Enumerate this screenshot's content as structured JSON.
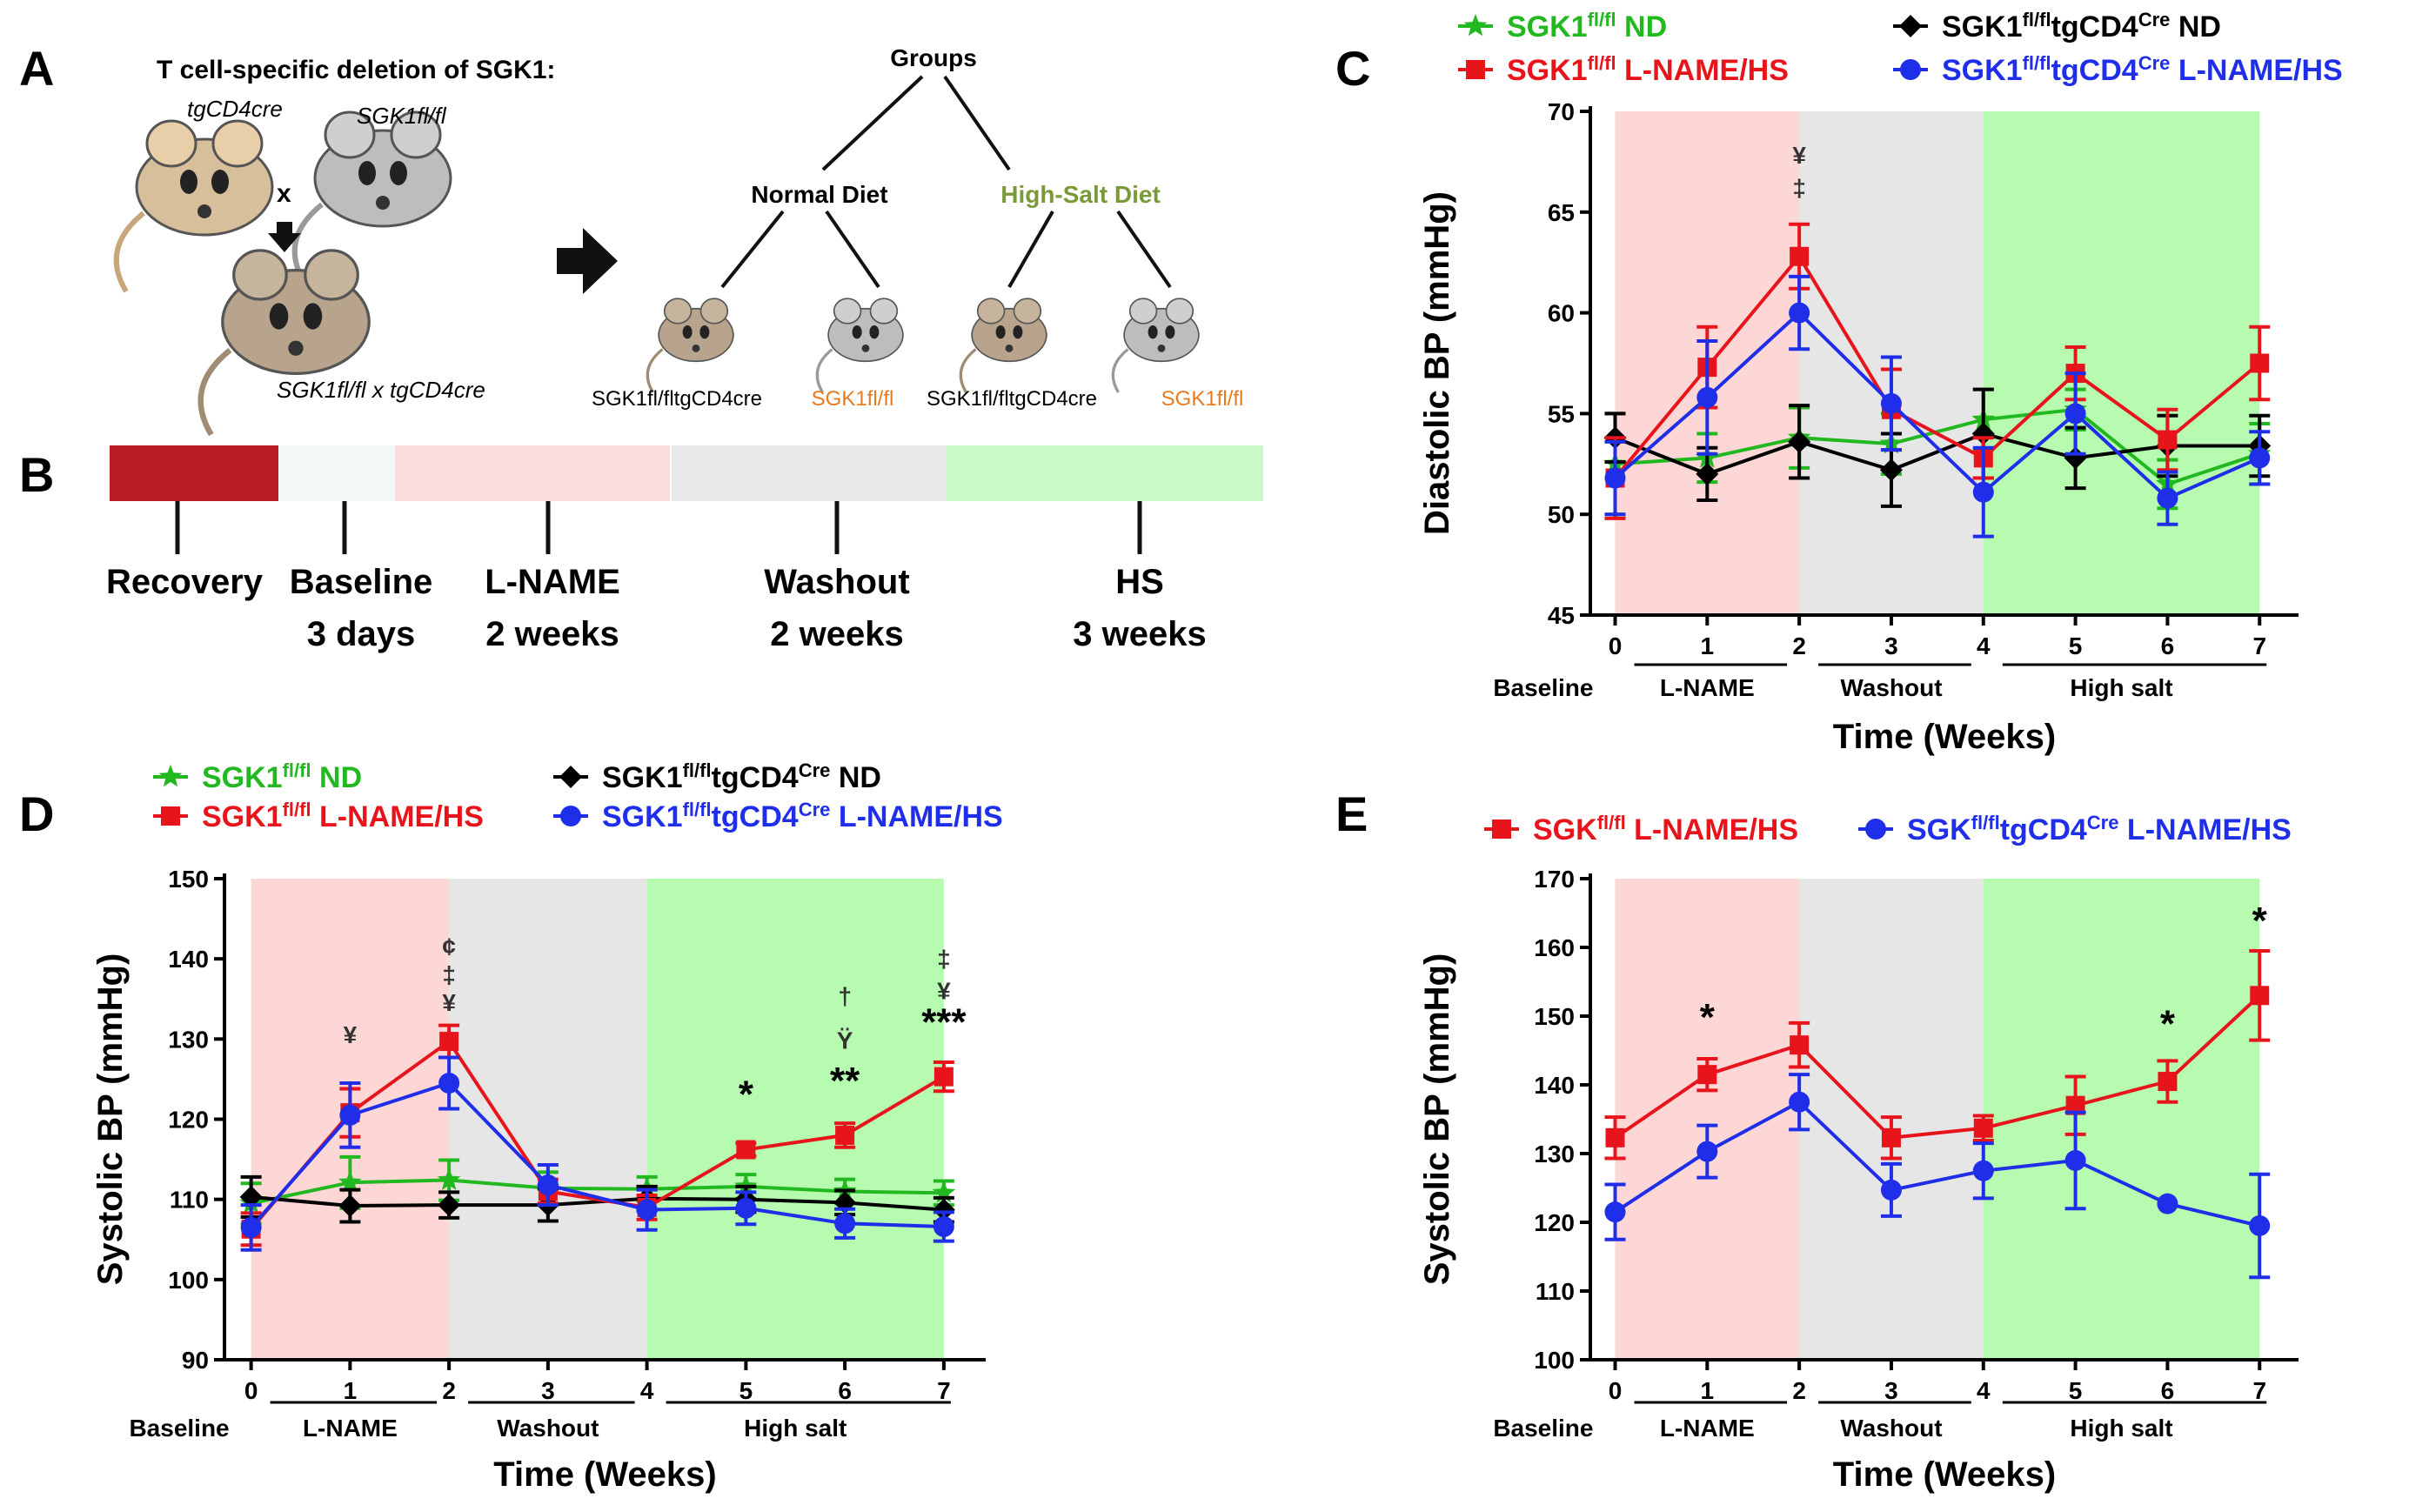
{
  "panels": {
    "a": {
      "letter": "A",
      "title": "T cell-specific deletion of SGK1:",
      "mice": {
        "tg": "tgCD4cre",
        "sgk": "SGK1fl/fl",
        "cross": "x",
        "offspring": "SGK1fl/fl x tgCD4cre"
      },
      "tree": {
        "root": "Groups",
        "normal": "Normal Diet",
        "highsalt": "High-Salt Diet",
        "leaf1": "SGK1fl/fltgCD4cre",
        "leaf2": "SGK1fl/fl",
        "leaf3": "SGK1fl/fltgCD4cre",
        "leaf4": "SGK1fl/fl"
      }
    },
    "b": {
      "letter": "B",
      "phases": [
        {
          "label": "Recovery",
          "duration": ""
        },
        {
          "label": "Baseline",
          "duration": "3 days"
        },
        {
          "label": "L-NAME",
          "duration": "2 weeks"
        },
        {
          "label": "Washout",
          "duration": "2 weeks"
        },
        {
          "label": "HS",
          "duration": "3 weeks"
        }
      ]
    },
    "c": {
      "letter": "C"
    },
    "d": {
      "letter": "D"
    },
    "e": {
      "letter": "E"
    }
  },
  "colors": {
    "red": "#e8141c",
    "blue": "#1f2ee8",
    "green": "#22b820",
    "black": "#000000",
    "orange": "#e87a1e",
    "olive": "#7a9a3a",
    "lname_bg": "#fdd6d6",
    "washout_bg": "#e6e6e6",
    "hs_bg": "#b6fbb0",
    "recovery": "#b71c24",
    "baseline_bg": "#f3f8f8",
    "lname_tl": "#fddcdc",
    "washout_tl": "#e8e8e8",
    "hs_tl": "#c9f9c4"
  },
  "chart_data": [
    {
      "id": "C",
      "type": "line",
      "ylabel": "Diastolic BP (mmHg)",
      "xlabel": "Time (Weeks)",
      "ylim": [
        45,
        70
      ],
      "yticks": [
        "45",
        "50",
        "55",
        "60",
        "65",
        "70"
      ],
      "x": [
        0,
        1,
        2,
        3,
        4,
        5,
        6,
        7
      ],
      "xticks": [
        "0",
        "1",
        "2",
        "3",
        "4",
        "5",
        "6",
        "7"
      ],
      "segments": [
        "Baseline",
        "L-NAME",
        "Washout",
        "High salt"
      ],
      "legend": [
        {
          "name": "SGK1fl/fl ND",
          "color": "green",
          "marker": "star"
        },
        {
          "name": "SGK1fl/fl L-NAME/HS",
          "color": "red",
          "marker": "square"
        },
        {
          "name": "SGK1fl/fltgCD4Cre ND",
          "color": "black",
          "marker": "diamond"
        },
        {
          "name": "SGK1fl/fltgCD4Cre L-NAME/HS",
          "color": "blue",
          "marker": "circle"
        }
      ],
      "series": [
        {
          "name": "SGK1fl/fl ND",
          "color": "green",
          "marker": "star",
          "values": [
            52.5,
            52.8,
            53.8,
            53.5,
            54.7,
            55.2,
            51.5,
            53.0
          ],
          "err": [
            2.5,
            1.2,
            1.5,
            1.5,
            1.5,
            1.0,
            1.2,
            1.5
          ]
        },
        {
          "name": "SGK1fl/fltgCD4Cre ND",
          "color": "black",
          "marker": "diamond",
          "values": [
            53.8,
            52.0,
            53.6,
            52.2,
            54.0,
            52.8,
            53.4,
            53.4
          ],
          "err": [
            1.2,
            1.3,
            1.8,
            1.8,
            2.2,
            1.5,
            1.5,
            1.5
          ]
        },
        {
          "name": "SGK1fl/fl L-NAME/HS",
          "color": "red",
          "marker": "square",
          "values": [
            51.8,
            57.3,
            62.8,
            55.2,
            52.8,
            57.0,
            53.7,
            57.5
          ],
          "err": [
            2.0,
            2.0,
            1.6,
            2.0,
            1.0,
            1.3,
            1.5,
            1.8
          ]
        },
        {
          "name": "SGK1fl/fltgCD4Cre L-NAME/HS",
          "color": "blue",
          "marker": "circle",
          "values": [
            51.8,
            55.8,
            60.0,
            55.5,
            51.1,
            55.0,
            50.8,
            52.8
          ],
          "err": [
            1.8,
            2.8,
            1.8,
            2.3,
            2.2,
            2.0,
            1.3,
            1.3
          ]
        }
      ],
      "annotations": [
        {
          "x": 2,
          "y": 67.4,
          "text": "¥"
        },
        {
          "x": 2,
          "y": 65.8,
          "text": "‡"
        }
      ]
    },
    {
      "id": "D",
      "type": "line",
      "ylabel": "Systolic BP (mmHg)",
      "xlabel": "Time (Weeks)",
      "ylim": [
        90,
        150
      ],
      "yticks": [
        "90",
        "100",
        "110",
        "120",
        "130",
        "140",
        "150"
      ],
      "x": [
        0,
        1,
        2,
        3,
        4,
        5,
        6,
        7
      ],
      "xticks": [
        "0",
        "1",
        "2",
        "3",
        "4",
        "5",
        "6",
        "7"
      ],
      "segments": [
        "Baseline",
        "L-NAME",
        "Washout",
        "High salt"
      ],
      "legend": [
        {
          "name": "SGK1fl/fl ND",
          "color": "green",
          "marker": "star"
        },
        {
          "name": "SGK1fl/fl L-NAME/HS",
          "color": "red",
          "marker": "square"
        },
        {
          "name": "SGK1fl/fltgCD4Cre ND",
          "color": "black",
          "marker": "diamond"
        },
        {
          "name": "SGK1fl/fltgCD4Cre L-NAME/HS",
          "color": "blue",
          "marker": "circle"
        }
      ],
      "series": [
        {
          "name": "SGK1fl/fl ND",
          "color": "green",
          "marker": "star",
          "values": [
            109.5,
            112.1,
            112.4,
            111.4,
            111.3,
            111.6,
            111.0,
            110.8
          ],
          "err": [
            2.5,
            3.2,
            2.5,
            2.0,
            1.5,
            1.5,
            1.5,
            1.5
          ]
        },
        {
          "name": "SGK1fl/fltgCD4Cre ND",
          "color": "black",
          "marker": "diamond",
          "values": [
            110.3,
            109.2,
            109.3,
            109.3,
            110.1,
            110.0,
            109.6,
            108.7
          ],
          "err": [
            2.5,
            2.0,
            1.6,
            2.0,
            1.5,
            1.6,
            1.5,
            1.5
          ]
        },
        {
          "name": "SGK1fl/fl L-NAME/HS",
          "color": "red",
          "marker": "square",
          "values": [
            106.3,
            120.8,
            129.7,
            111.0,
            109.0,
            116.2,
            118.0,
            125.3
          ],
          "err": [
            2.0,
            3.0,
            2.0,
            1.5,
            1.5,
            0.8,
            1.5,
            1.8
          ]
        },
        {
          "name": "SGK1fl/fltgCD4Cre L-NAME/HS",
          "color": "blue",
          "marker": "circle",
          "values": [
            106.5,
            120.5,
            124.5,
            111.8,
            108.7,
            108.9,
            107.0,
            106.6
          ],
          "err": [
            2.8,
            4.0,
            3.2,
            2.5,
            2.5,
            2.0,
            1.8,
            1.8
          ]
        }
      ],
      "annotations": [
        {
          "x": 1,
          "y": 129.5,
          "text": "¥"
        },
        {
          "x": 2,
          "y": 140.5,
          "text": "¢"
        },
        {
          "x": 2,
          "y": 137.0,
          "text": "‡"
        },
        {
          "x": 2,
          "y": 133.5,
          "text": "¥"
        },
        {
          "x": 5,
          "y": 121.5,
          "text": "*"
        },
        {
          "x": 6,
          "y": 134.3,
          "text": "†"
        },
        {
          "x": 6,
          "y": 128.8,
          "text": "Ÿ"
        },
        {
          "x": 6,
          "y": 123.2,
          "text": "**"
        },
        {
          "x": 7,
          "y": 139.0,
          "text": "‡"
        },
        {
          "x": 7,
          "y": 135.0,
          "text": "¥"
        },
        {
          "x": 7,
          "y": 130.5,
          "text": "***"
        }
      ]
    },
    {
      "id": "E",
      "type": "line",
      "ylabel": "Systolic BP (mmHg)",
      "xlabel": "Time (Weeks)",
      "ylim": [
        100,
        170
      ],
      "yticks": [
        "100",
        "110",
        "120",
        "130",
        "140",
        "150",
        "160",
        "170"
      ],
      "x": [
        0,
        1,
        2,
        3,
        4,
        5,
        6,
        7
      ],
      "xticks": [
        "0",
        "1",
        "2",
        "3",
        "4",
        "5",
        "6",
        "7"
      ],
      "segments": [
        "Baseline",
        "L-NAME",
        "Washout",
        "High salt"
      ],
      "legend": [
        {
          "name": "SGKfl/fl L-NAME/HS",
          "color": "red",
          "marker": "square"
        },
        {
          "name": "SGKfl/fltgCD4Cre L-NAME/HS",
          "color": "blue",
          "marker": "circle"
        }
      ],
      "series": [
        {
          "name": "SGKfl/fl L-NAME/HS",
          "color": "red",
          "marker": "square",
          "values": [
            132.3,
            141.5,
            145.8,
            132.3,
            133.7,
            137.0,
            140.5,
            153.0
          ],
          "err": [
            3.0,
            2.3,
            3.2,
            3.0,
            1.8,
            4.2,
            3.0,
            6.5
          ]
        },
        {
          "name": "SGKfl/fltgCD4Cre L-NAME/HS",
          "color": "blue",
          "marker": "circle",
          "values": [
            121.5,
            130.3,
            137.5,
            124.7,
            127.5,
            129.0,
            122.7,
            119.5
          ],
          "err": [
            4.0,
            3.8,
            4.0,
            3.8,
            4.0,
            7.0,
            0.0,
            7.5
          ]
        }
      ],
      "annotations": [
        {
          "x": 1,
          "y": 148.0,
          "text": "*"
        },
        {
          "x": 6,
          "y": 147.0,
          "text": "*"
        },
        {
          "x": 7,
          "y": 162.0,
          "text": "*"
        }
      ]
    }
  ]
}
